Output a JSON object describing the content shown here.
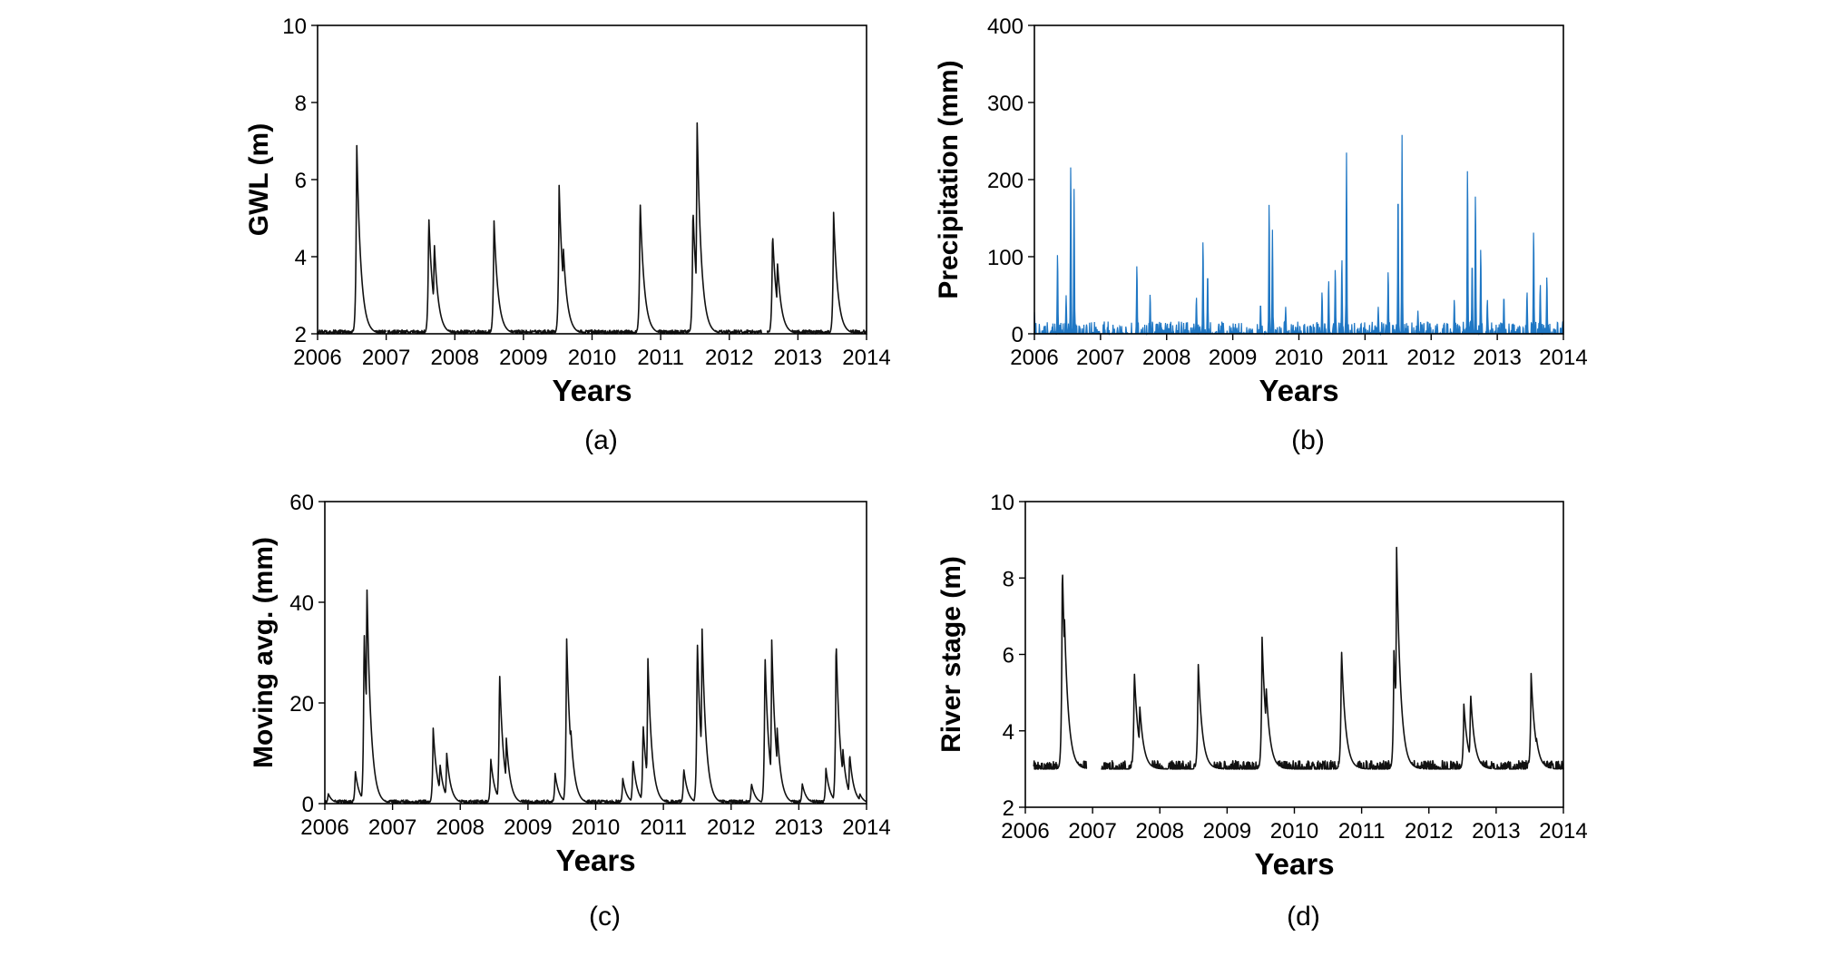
{
  "figure": {
    "panels": [
      {
        "id": "a",
        "caption": "(a)",
        "chart_data": {
          "type": "line",
          "xlabel": "Years",
          "ylabel": "GWL (m)",
          "xlim": [
            2006,
            2014
          ],
          "ylim": [
            2,
            10
          ],
          "xticks": [
            "2006",
            "2007",
            "2008",
            "2009",
            "2010",
            "2011",
            "2012",
            "2013",
            "2014"
          ],
          "yticks": [
            "2",
            "4",
            "6",
            "8",
            "10"
          ],
          "line_color": "#111111",
          "fill": false,
          "baseline": 2.0,
          "peaks": [
            {
              "x": 2006.57,
              "y": 7.0
            },
            {
              "x": 2007.62,
              "y": 5.1
            },
            {
              "x": 2007.7,
              "y": 4.4
            },
            {
              "x": 2008.57,
              "y": 5.0
            },
            {
              "x": 2009.52,
              "y": 5.85
            },
            {
              "x": 2009.58,
              "y": 4.3
            },
            {
              "x": 2010.7,
              "y": 5.5
            },
            {
              "x": 2011.53,
              "y": 7.6
            },
            {
              "x": 2011.47,
              "y": 5.3
            },
            {
              "x": 2012.63,
              "y": 4.65
            },
            {
              "x": 2012.7,
              "y": 3.9
            },
            {
              "x": 2013.52,
              "y": 5.15
            }
          ],
          "gaps": [
            [
              2007.0,
              2007.02
            ],
            [
              2012.47,
              2012.55
            ]
          ]
        }
      },
      {
        "id": "b",
        "caption": "(b)",
        "chart_data": {
          "type": "bar",
          "xlabel": "Years",
          "ylabel": "Precipitation (mm)",
          "xlim": [
            2006,
            2014
          ],
          "ylim": [
            0,
            400
          ],
          "xticks": [
            "2006",
            "2007",
            "2008",
            "2009",
            "2010",
            "2011",
            "2012",
            "2013",
            "2014"
          ],
          "yticks": [
            "0",
            "100",
            "200",
            "300",
            "400"
          ],
          "line_color": "#1f77c4",
          "fill": true,
          "baseline": 0,
          "peaks": [
            {
              "x": 2006.0,
              "y": 28
            },
            {
              "x": 2006.35,
              "y": 105
            },
            {
              "x": 2006.48,
              "y": 50
            },
            {
              "x": 2006.55,
              "y": 222
            },
            {
              "x": 2006.6,
              "y": 188
            },
            {
              "x": 2007.55,
              "y": 90
            },
            {
              "x": 2007.75,
              "y": 52
            },
            {
              "x": 2008.45,
              "y": 48
            },
            {
              "x": 2008.55,
              "y": 122
            },
            {
              "x": 2008.62,
              "y": 80
            },
            {
              "x": 2009.42,
              "y": 40
            },
            {
              "x": 2009.55,
              "y": 172
            },
            {
              "x": 2009.6,
              "y": 135
            },
            {
              "x": 2009.8,
              "y": 35
            },
            {
              "x": 2010.35,
              "y": 55
            },
            {
              "x": 2010.45,
              "y": 70
            },
            {
              "x": 2010.55,
              "y": 85
            },
            {
              "x": 2010.65,
              "y": 98
            },
            {
              "x": 2010.72,
              "y": 235
            },
            {
              "x": 2011.2,
              "y": 35
            },
            {
              "x": 2011.35,
              "y": 82
            },
            {
              "x": 2011.5,
              "y": 188
            },
            {
              "x": 2011.56,
              "y": 258
            },
            {
              "x": 2011.8,
              "y": 30
            },
            {
              "x": 2012.35,
              "y": 45
            },
            {
              "x": 2012.55,
              "y": 217
            },
            {
              "x": 2012.62,
              "y": 95
            },
            {
              "x": 2012.67,
              "y": 183
            },
            {
              "x": 2012.75,
              "y": 112
            },
            {
              "x": 2012.85,
              "y": 45
            },
            {
              "x": 2013.1,
              "y": 50
            },
            {
              "x": 2013.45,
              "y": 55
            },
            {
              "x": 2013.55,
              "y": 135
            },
            {
              "x": 2013.65,
              "y": 65
            },
            {
              "x": 2013.75,
              "y": 75
            }
          ],
          "gaps": []
        }
      },
      {
        "id": "c",
        "caption": "(c)",
        "chart_data": {
          "type": "line",
          "xlabel": "Years",
          "ylabel": "Moving avg.  (mm)",
          "xlim": [
            2006,
            2014
          ],
          "ylim": [
            0,
            60
          ],
          "xticks": [
            "2006",
            "2007",
            "2008",
            "2009",
            "2010",
            "2011",
            "2012",
            "2013",
            "2014"
          ],
          "yticks": [
            "0",
            "20",
            "40",
            "60"
          ],
          "line_color": "#111111",
          "fill": false,
          "baseline": 0,
          "peaks": [
            {
              "x": 2006.05,
              "y": 2
            },
            {
              "x": 2006.45,
              "y": 6.5
            },
            {
              "x": 2006.62,
              "y": 44.5
            },
            {
              "x": 2006.58,
              "y": 35
            },
            {
              "x": 2006.75,
              "y": 3
            },
            {
              "x": 2007.6,
              "y": 15
            },
            {
              "x": 2007.7,
              "y": 8
            },
            {
              "x": 2007.8,
              "y": 10
            },
            {
              "x": 2008.45,
              "y": 9
            },
            {
              "x": 2008.58,
              "y": 26.5
            },
            {
              "x": 2008.68,
              "y": 13
            },
            {
              "x": 2009.4,
              "y": 6
            },
            {
              "x": 2009.57,
              "y": 33.5
            },
            {
              "x": 2009.63,
              "y": 15.5
            },
            {
              "x": 2010.4,
              "y": 5
            },
            {
              "x": 2010.55,
              "y": 9
            },
            {
              "x": 2010.7,
              "y": 16
            },
            {
              "x": 2010.77,
              "y": 29.5
            },
            {
              "x": 2011.3,
              "y": 7
            },
            {
              "x": 2011.5,
              "y": 33
            },
            {
              "x": 2011.57,
              "y": 35.5
            },
            {
              "x": 2012.3,
              "y": 4
            },
            {
              "x": 2012.5,
              "y": 30
            },
            {
              "x": 2012.6,
              "y": 32.5
            },
            {
              "x": 2012.68,
              "y": 15
            },
            {
              "x": 2013.05,
              "y": 4
            },
            {
              "x": 2013.4,
              "y": 7
            },
            {
              "x": 2013.55,
              "y": 33
            },
            {
              "x": 2013.65,
              "y": 11
            },
            {
              "x": 2013.75,
              "y": 10
            },
            {
              "x": 2013.9,
              "y": 2
            }
          ],
          "gaps": []
        }
      },
      {
        "id": "d",
        "caption": "(d)",
        "chart_data": {
          "type": "line",
          "xlabel": "Years",
          "ylabel": "River stage (m)",
          "xlim": [
            2006,
            2014
          ],
          "ylim": [
            2,
            10
          ],
          "xticks": [
            "2006",
            "2007",
            "2008",
            "2009",
            "2010",
            "2011",
            "2012",
            "2013",
            "2014"
          ],
          "yticks": [
            "2",
            "4",
            "6",
            "8",
            "10"
          ],
          "line_color": "#111111",
          "fill": false,
          "baseline": 3.0,
          "peaks": [
            {
              "x": 2006.55,
              "y": 8.45
            },
            {
              "x": 2006.58,
              "y": 7.1
            },
            {
              "x": 2007.62,
              "y": 5.6
            },
            {
              "x": 2007.7,
              "y": 4.7
            },
            {
              "x": 2008.57,
              "y": 5.8
            },
            {
              "x": 2009.52,
              "y": 6.45
            },
            {
              "x": 2009.58,
              "y": 5.2
            },
            {
              "x": 2010.7,
              "y": 6.2
            },
            {
              "x": 2011.52,
              "y": 8.8
            },
            {
              "x": 2011.48,
              "y": 6.1
            },
            {
              "x": 2011.57,
              "y": 4.9
            },
            {
              "x": 2012.52,
              "y": 4.7
            },
            {
              "x": 2012.62,
              "y": 5.0
            },
            {
              "x": 2013.52,
              "y": 5.5
            },
            {
              "x": 2013.6,
              "y": 3.8
            }
          ],
          "gaps": [
            [
              2006.0,
              2006.12
            ],
            [
              2006.92,
              2007.12
            ]
          ]
        }
      }
    ]
  }
}
